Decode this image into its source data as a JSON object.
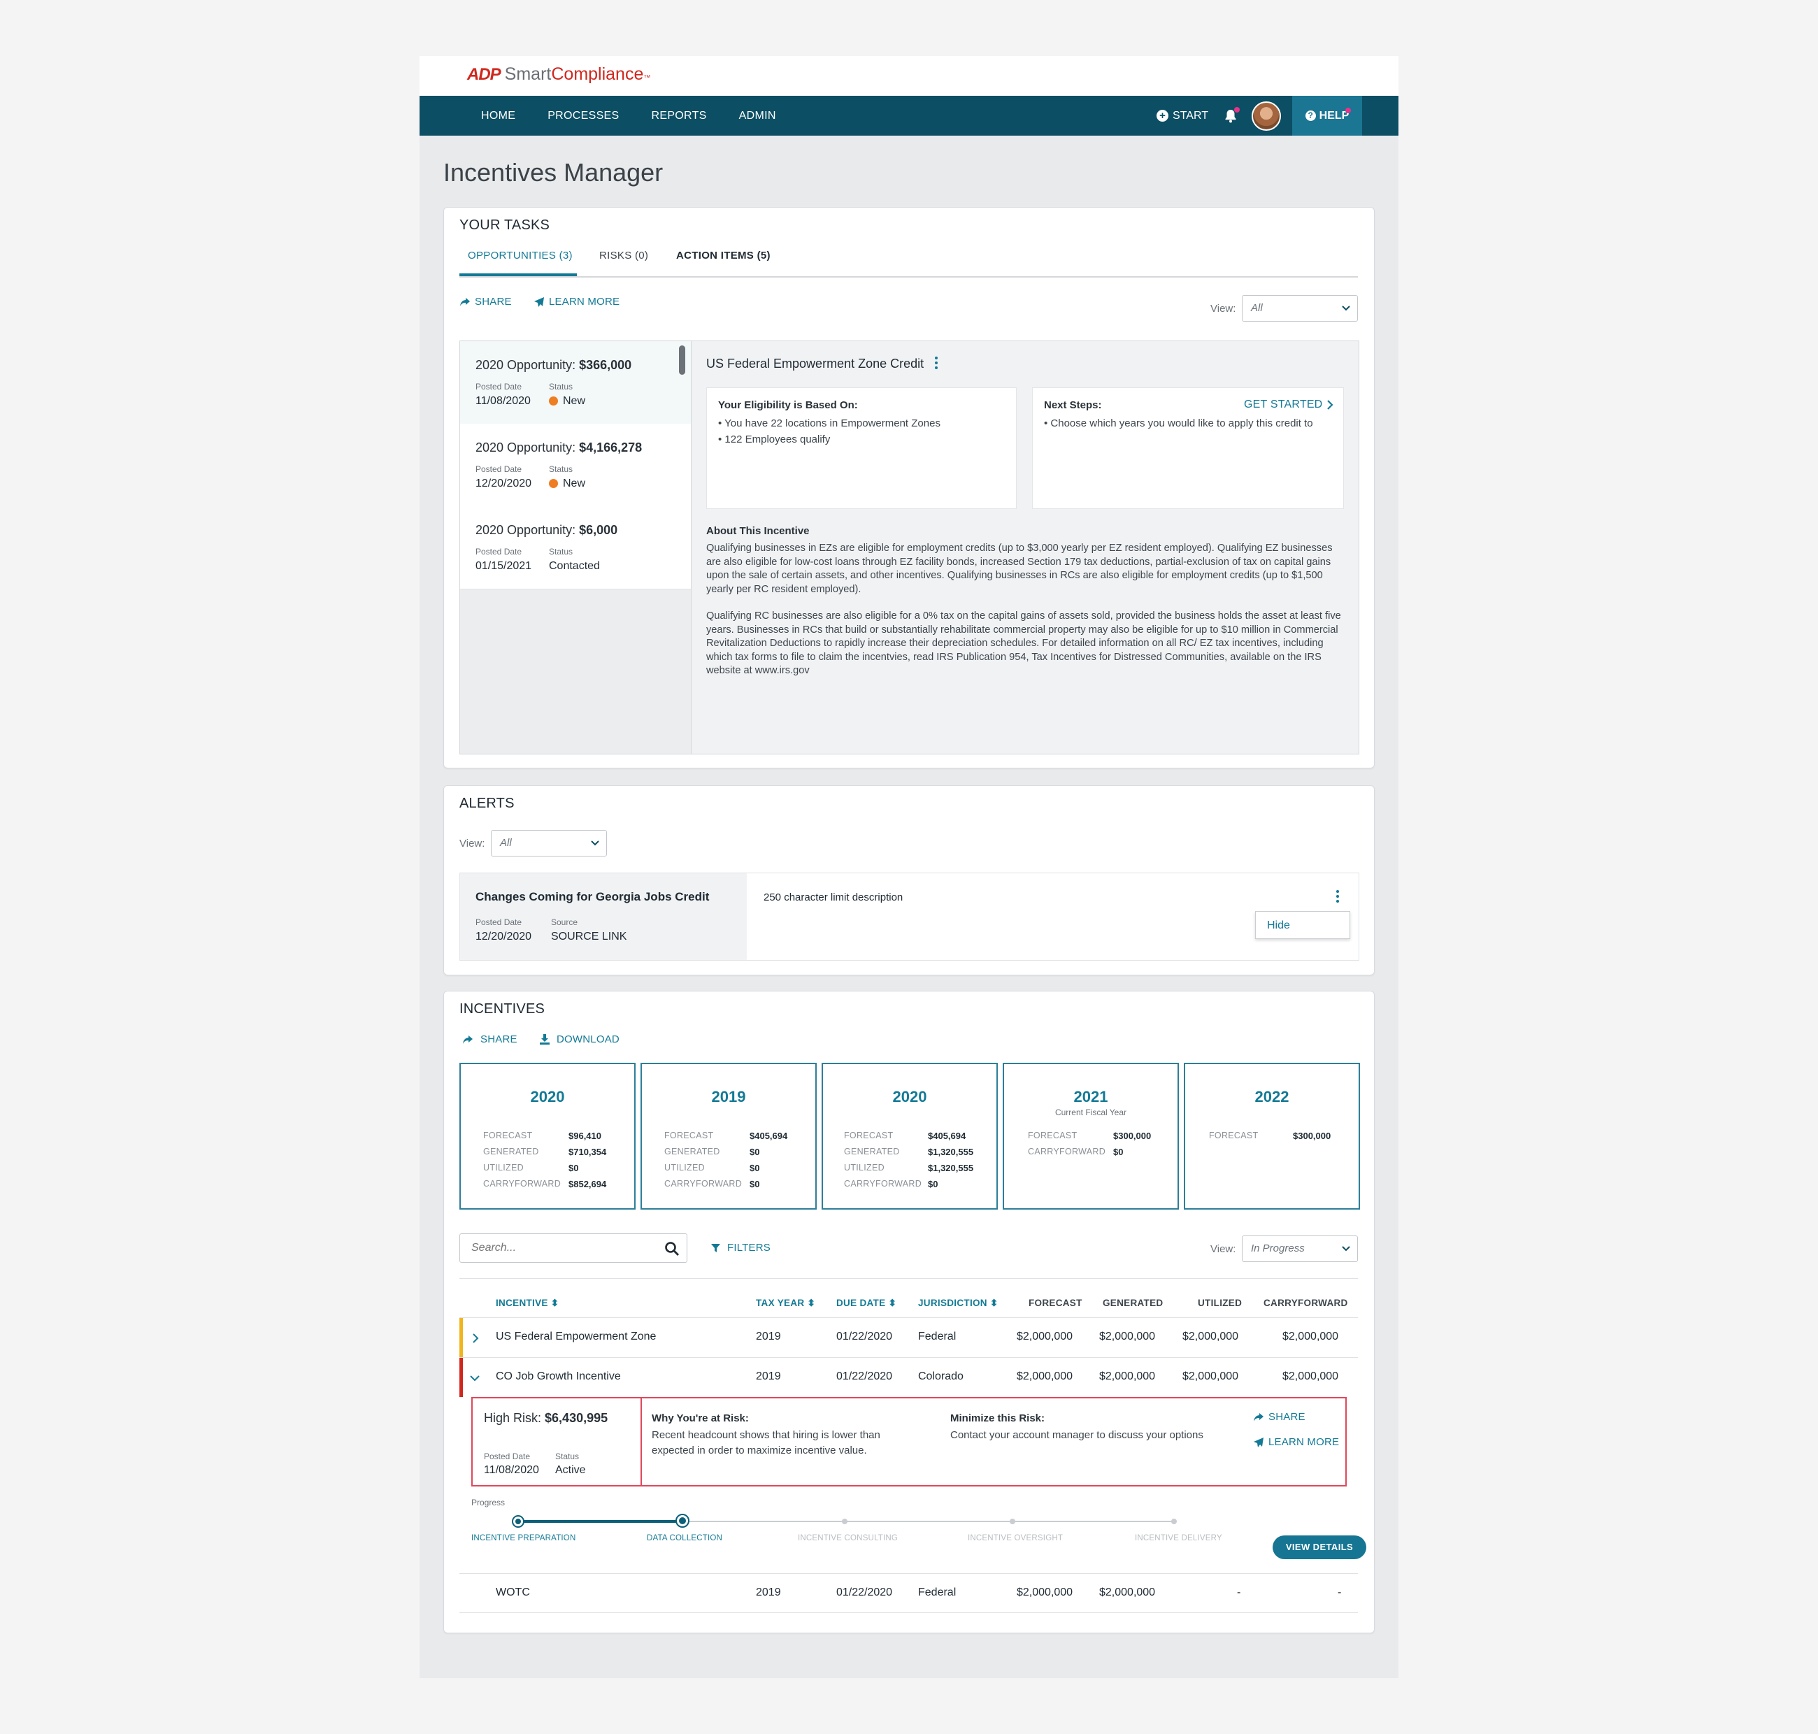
{
  "brand": {
    "mark": "ADP",
    "name_part1": "Smart",
    "name_part2": "Compliance",
    "tm": "™"
  },
  "nav": {
    "items": [
      "HOME",
      "PROCESSES",
      "REPORTS",
      "ADMIN"
    ],
    "start": "START",
    "help": "HELP"
  },
  "page_title": "Incentives Manager",
  "tasks": {
    "title": "YOUR TASKS",
    "tabs": [
      "OPPORTUNITIES (3)",
      "RISKS (0)",
      "ACTION ITEMS (5)"
    ],
    "share": "SHARE",
    "learn_more": "LEARN MORE",
    "view_label": "View:",
    "view_value": "All",
    "posted_label": "Posted Date",
    "status_label": "Status",
    "opportunities": [
      {
        "title": "2020 Opportunity: ",
        "amount": "$366,000",
        "posted": "11/08/2020",
        "status": "New"
      },
      {
        "title": "2020 Opportunity: ",
        "amount": "$4,166,278",
        "posted": "12/20/2020",
        "status": "New"
      },
      {
        "title": "2020 Opportunity: ",
        "amount": "$6,000",
        "posted": "01/15/2021",
        "status": "Contacted"
      }
    ],
    "detail": {
      "title": "US Federal Empowerment Zone Credit",
      "eligibility_title": "Your Eligibility is Based On:",
      "eligibility": [
        "• You have 22 locations in Empowerment Zones",
        "• 122 Employees qualify"
      ],
      "next_title": "Next Steps:",
      "get_started": "GET STARTED",
      "next": [
        "• Choose which years you would like to apply this credit to"
      ],
      "about_title": "About This Incentive",
      "about_p1": "Qualifying businesses in EZs are eligible for employment credits (up to $3,000 yearly per EZ resident employed). Qualifying EZ businesses are also eligible for low-cost loans through EZ facility bonds, increased Section 179 tax deductions, partial-exclusion of tax on capital gains upon the sale of certain assets, and other incentives. Qualifying businesses in RCs are also eligible for employment credits (up to $1,500 yearly per RC resident employed).",
      "about_p2": "Qualifying RC businesses are also eligible for a 0% tax on the capital gains of assets sold, provided the business holds the asset at least five years. Businesses in RCs that build or substantially rehabilitate commercial property may also be eligible for up to $10 million in Commercial Revitalization Deductions to rapidly increase their depreciation schedules. For detailed information on all RC/ EZ tax incentives, including which tax forms to file to claim the incentvies, read IRS Publication 954, Tax Incentives for Distressed Communities, available on the IRS website at www.irs.gov"
    }
  },
  "alerts": {
    "title": "ALERTS",
    "view_label": "View:",
    "view_value": "All",
    "item": {
      "title": "Changes Coming for Georgia Jobs Credit",
      "posted_label": "Posted Date",
      "posted": "12/20/2020",
      "source_label": "Source",
      "source_link": "SOURCE LINK",
      "description": "250 character limit description",
      "menu_hide": "Hide"
    }
  },
  "incentives": {
    "title": "INCENTIVES",
    "share": "SHARE",
    "download": "DOWNLOAD",
    "years": [
      {
        "year": "2020",
        "sub": "",
        "rows": [
          [
            "FORECAST",
            "$96,410"
          ],
          [
            "GENERATED",
            "$710,354"
          ],
          [
            "UTILIZED",
            "$0"
          ],
          [
            "CARRYFORWARD",
            "$852,694"
          ]
        ]
      },
      {
        "year": "2019",
        "sub": "",
        "rows": [
          [
            "FORECAST",
            "$405,694"
          ],
          [
            "GENERATED",
            "$0"
          ],
          [
            "UTILIZED",
            "$0"
          ],
          [
            "CARRYFORWARD",
            "$0"
          ]
        ]
      },
      {
        "year": "2020",
        "sub": "",
        "rows": [
          [
            "FORECAST",
            "$405,694"
          ],
          [
            "GENERATED",
            "$1,320,555"
          ],
          [
            "UTILIZED",
            "$1,320,555"
          ],
          [
            "CARRYFORWARD",
            "$0"
          ]
        ]
      },
      {
        "year": "2021",
        "sub": "Current Fiscal Year",
        "rows": [
          [
            "FORECAST",
            "$300,000"
          ],
          [
            "CARRYFORWARD",
            "$0"
          ]
        ]
      },
      {
        "year": "2022",
        "sub": "",
        "rows": [
          [
            "FORECAST",
            "$300,000"
          ]
        ]
      }
    ],
    "search_placeholder": "Search...",
    "filters": "FILTERS",
    "view_label": "View:",
    "view_value": "In Progress",
    "columns": [
      "INCENTIVE",
      "TAX YEAR",
      "DUE DATE",
      "JURISDICTION",
      "FORECAST",
      "GENERATED",
      "UTILIZED",
      "CARRYFORWARD"
    ],
    "rows": [
      {
        "name": "US Federal Empowerment Zone",
        "year": "2019",
        "due": "01/22/2020",
        "jur": "Federal",
        "forecast": "$2,000,000",
        "generated": "$2,000,000",
        "utilized": "$2,000,000",
        "carry": "$2,000,000"
      },
      {
        "name": "CO Job Growth Incentive",
        "year": "2019",
        "due": "01/22/2020",
        "jur": "Colorado",
        "forecast": "$2,000,000",
        "generated": "$2,000,000",
        "utilized": "$2,000,000",
        "carry": "$2,000,000"
      },
      {
        "name": "WOTC",
        "year": "2019",
        "due": "01/22/2020",
        "jur": "Federal",
        "forecast": "$2,000,000",
        "generated": "$2,000,000",
        "utilized": "-",
        "carry": "-"
      }
    ],
    "risk": {
      "label": "High Risk: ",
      "amount": "$6,430,995",
      "posted_label": "Posted Date",
      "posted": "11/08/2020",
      "status_label": "Status",
      "status": "Active",
      "why_title": "Why You're at Risk:",
      "why": "Recent headcount shows that hiring is lower than expected in order to maximize incentive value.",
      "min_title": "Minimize this Risk:",
      "min": "Contact your account manager to discuss your options",
      "share": "SHARE",
      "learn_more": "LEARN MORE"
    },
    "progress_label": "Progress",
    "stages": [
      "INCENTIVE PREPARATION",
      "DATA COLLECTION",
      "INCENTIVE CONSULTING",
      "INCENTIVE OVERSIGHT",
      "INCENTIVE DELIVERY"
    ],
    "view_details": "VIEW DETAILS"
  },
  "colors": {
    "brand_red": "#d0271d",
    "nav": "#0c4e63",
    "accent": "#137a96",
    "risk": "#e0475b",
    "new_status": "#ef7d22",
    "row_warning": "#f0b41c"
  }
}
